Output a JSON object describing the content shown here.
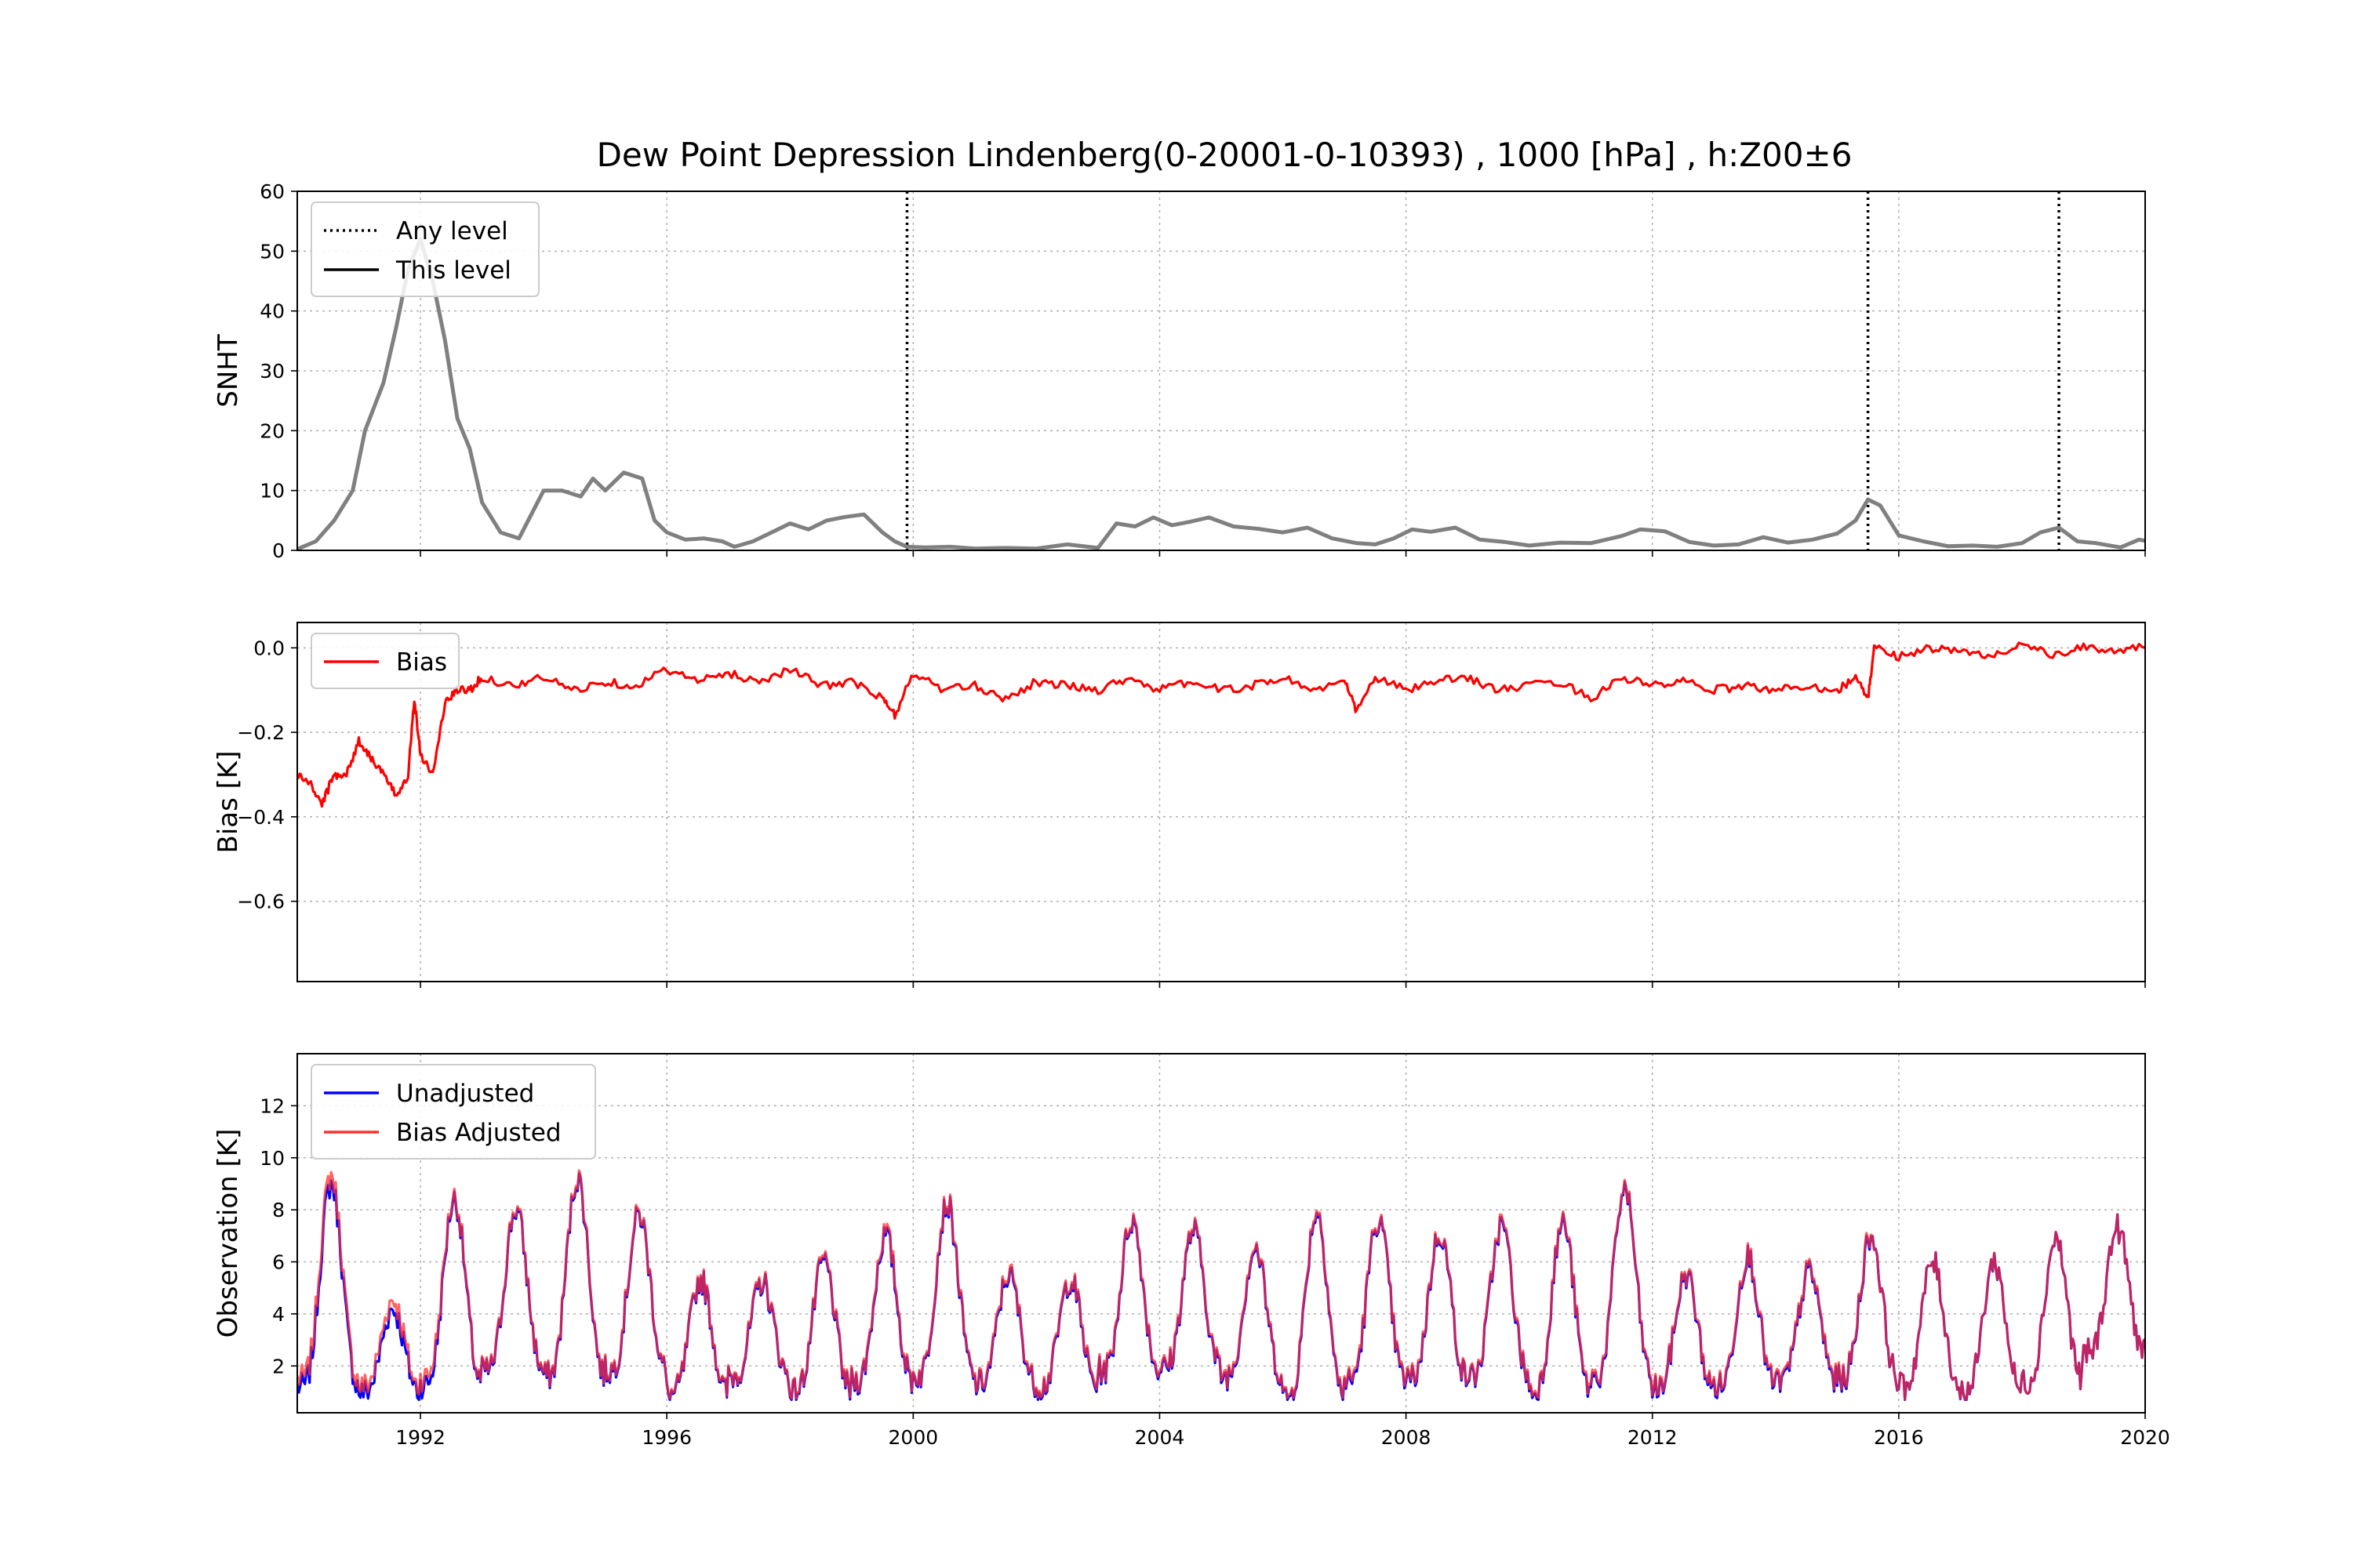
{
  "chart_data": {
    "title": "Dew Point Depression Lindenberg(0-20001-0-10393) , 1000 [hPa] , h:Z00±6",
    "type": "line",
    "xlim": [
      1990,
      2020
    ],
    "xticks": [
      {
        "value": 1992,
        "label": "1992"
      },
      {
        "value": 1996,
        "label": "1996"
      },
      {
        "value": 2000,
        "label": "2000"
      },
      {
        "value": 2004,
        "label": "2004"
      },
      {
        "value": 2008,
        "label": "2008"
      },
      {
        "value": 2012,
        "label": "2012"
      },
      {
        "value": 2016,
        "label": "2016"
      },
      {
        "value": 2020,
        "label": "2020"
      }
    ],
    "grid": true,
    "panels": [
      {
        "id": "snht",
        "ylabel": "SNHT",
        "ylim": [
          0,
          60
        ],
        "yticks": [
          0,
          10,
          20,
          30,
          40,
          50,
          60
        ],
        "ytick_labels": [
          "0",
          "10",
          "20",
          "30",
          "40",
          "50",
          "60"
        ],
        "legend": {
          "placement": "top-left",
          "entries": [
            {
              "label": "Any level",
              "style": "dotted",
              "color": "#000000"
            },
            {
              "label": "This level",
              "style": "solid",
              "color": "#000000"
            }
          ]
        },
        "breakpoints_any_level": [
          1999.9,
          2015.5,
          2018.6
        ],
        "series": [
          {
            "color": "#808080",
            "x": [
              1990.0,
              1990.3,
              1990.6,
              1990.9,
              1991.1,
              1991.4,
              1991.6,
              1991.8,
              1992.0,
              1992.2,
              1992.4,
              1992.6,
              1992.8,
              1993.0,
              1993.3,
              1993.6,
              1993.8,
              1994.0,
              1994.3,
              1994.6,
              1994.8,
              1995.0,
              1995.3,
              1995.6,
              1995.8,
              1996.0,
              1996.3,
              1996.6,
              1996.9,
              1997.1,
              1997.4,
              1997.7,
              1998.0,
              1998.3,
              1998.6,
              1998.9,
              1999.2,
              1999.5,
              1999.7,
              1999.9,
              2000.2,
              2000.6,
              2001.0,
              2001.5,
              2002.0,
              2002.5,
              2003.0,
              2003.3,
              2003.6,
              2003.9,
              2004.2,
              2004.5,
              2004.8,
              2005.2,
              2005.6,
              2006.0,
              2006.4,
              2006.8,
              2007.2,
              2007.5,
              2007.8,
              2008.1,
              2008.4,
              2008.8,
              2009.2,
              2009.6,
              2010.0,
              2010.5,
              2011.0,
              2011.5,
              2011.8,
              2012.2,
              2012.6,
              2013.0,
              2013.4,
              2013.8,
              2014.2,
              2014.6,
              2015.0,
              2015.3,
              2015.5,
              2015.7,
              2016.0,
              2016.4,
              2016.8,
              2017.2,
              2017.6,
              2018.0,
              2018.3,
              2018.6,
              2018.9,
              2019.2,
              2019.6,
              2019.9,
              2020.0
            ],
            "y": [
              0.2,
              1.5,
              5,
              10,
              20,
              28,
              37,
              47,
              52,
              45,
              35,
              22,
              17,
              8,
              3,
              2,
              6,
              10,
              10,
              9,
              12,
              10,
              13,
              12,
              5,
              3,
              1.8,
              2,
              1.5,
              0.6,
              1.5,
              3,
              4.5,
              3.5,
              5,
              5.6,
              6,
              3,
              1.5,
              0.6,
              0.5,
              0.6,
              0.3,
              0.4,
              0.3,
              1.0,
              0.4,
              4.5,
              4,
              5.5,
              4.2,
              4.8,
              5.5,
              4,
              3.6,
              3,
              3.8,
              2,
              1.2,
              1,
              2,
              3.5,
              3.1,
              3.8,
              1.8,
              1.4,
              0.8,
              1.3,
              1.2,
              2.4,
              3.5,
              3.2,
              1.4,
              0.8,
              1,
              2.2,
              1.3,
              1.8,
              2.8,
              5,
              8.5,
              7.5,
              2.5,
              1.5,
              0.7,
              0.8,
              0.6,
              1.2,
              3,
              3.8,
              1.5,
              1.2,
              0.5,
              1.8,
              1.6
            ]
          }
        ]
      },
      {
        "id": "bias",
        "ylabel": "Bias [K]",
        "ylim": [
          -0.79,
          0.06
        ],
        "yticks": [
          0.0,
          -0.2,
          -0.4,
          -0.6
        ],
        "ytick_labels": [
          "0.0",
          "−0.2",
          "−0.4",
          "−0.6"
        ],
        "legend": {
          "placement": "top-left",
          "entries": [
            {
              "label": "Bias",
              "style": "solid",
              "color": "#ff0000"
            }
          ]
        },
        "series": [
          {
            "name": "Bias",
            "color": "#ff0000",
            "x": [
              1990.0,
              1990.2,
              1990.4,
              1990.6,
              1990.8,
              1991.0,
              1991.2,
              1991.4,
              1991.6,
              1991.8,
              1991.9,
              1992.0,
              1992.2,
              1992.4,
              1992.6,
              1992.8,
              1993.0,
              1993.5,
              1994.0,
              1994.5,
              1995.0,
              1995.5,
              1996.0,
              1996.5,
              1997.0,
              1997.5,
              1998.0,
              1998.5,
              1999.0,
              1999.5,
              1999.7,
              2000.0,
              2000.5,
              2001.0,
              2001.5,
              2002.0,
              2002.5,
              2003.0,
              2003.5,
              2004.0,
              2004.5,
              2005.0,
              2005.5,
              2006.0,
              2006.5,
              2007.0,
              2007.2,
              2007.5,
              2008.0,
              2008.5,
              2009.0,
              2009.5,
              2010.0,
              2010.5,
              2011.0,
              2011.5,
              2012.0,
              2012.5,
              2013.0,
              2013.5,
              2014.0,
              2014.5,
              2015.0,
              2015.3,
              2015.5,
              2015.6,
              2016.0,
              2016.5,
              2017.0,
              2017.5,
              2018.0,
              2018.5,
              2019.0,
              2019.5,
              2020.0
            ],
            "y": [
              -0.3,
              -0.32,
              -0.37,
              -0.3,
              -0.3,
              -0.22,
              -0.26,
              -0.3,
              -0.35,
              -0.3,
              -0.12,
              -0.25,
              -0.3,
              -0.13,
              -0.1,
              -0.1,
              -0.07,
              -0.09,
              -0.07,
              -0.1,
              -0.08,
              -0.09,
              -0.05,
              -0.08,
              -0.06,
              -0.08,
              -0.05,
              -0.09,
              -0.08,
              -0.12,
              -0.16,
              -0.06,
              -0.1,
              -0.09,
              -0.12,
              -0.08,
              -0.09,
              -0.1,
              -0.07,
              -0.1,
              -0.08,
              -0.1,
              -0.09,
              -0.07,
              -0.1,
              -0.08,
              -0.15,
              -0.07,
              -0.1,
              -0.08,
              -0.07,
              -0.1,
              -0.09,
              -0.08,
              -0.12,
              -0.07,
              -0.09,
              -0.08,
              -0.1,
              -0.09,
              -0.1,
              -0.09,
              -0.1,
              -0.07,
              -0.12,
              0.0,
              -0.02,
              0.0,
              -0.01,
              -0.02,
              0.01,
              -0.02,
              0.0,
              -0.005,
              0.0
            ]
          }
        ]
      },
      {
        "id": "observation",
        "ylabel": "Observation [K]",
        "ylim": [
          0.2,
          14
        ],
        "yticks": [
          2,
          4,
          6,
          8,
          10,
          12
        ],
        "ytick_labels": [
          "2",
          "4",
          "6",
          "8",
          "10",
          "12"
        ],
        "legend": {
          "placement": "top-left",
          "entries": [
            {
              "label": "Unadjusted",
              "style": "solid",
              "color": "#0000ff"
            },
            {
              "label": "Bias Adjusted",
              "style": "solid",
              "color": "#ff3030"
            }
          ]
        },
        "seasonal_peaks": [
          {
            "year": 1990,
            "peak": 9.0,
            "trough": 1.2
          },
          {
            "year": 1991,
            "peak": 4.2,
            "trough": 1.0
          },
          {
            "year": 1992,
            "peak": 8.4,
            "trough": 1.3
          },
          {
            "year": 1993,
            "peak": 8.0,
            "trough": 1.8
          },
          {
            "year": 1994,
            "peak": 9.2,
            "trough": 1.6
          },
          {
            "year": 1995,
            "peak": 7.8,
            "trough": 1.8
          },
          {
            "year": 1996,
            "peak": 5.3,
            "trough": 0.9
          },
          {
            "year": 1997,
            "peak": 5.2,
            "trough": 1.6
          },
          {
            "year": 1998,
            "peak": 6.0,
            "trough": 1.0
          },
          {
            "year": 1999,
            "peak": 7.0,
            "trough": 1.4
          },
          {
            "year": 2000,
            "peak": 8.2,
            "trough": 1.6
          },
          {
            "year": 2001,
            "peak": 5.5,
            "trough": 1.3
          },
          {
            "year": 2002,
            "peak": 5.3,
            "trough": 1.2
          },
          {
            "year": 2003,
            "peak": 7.6,
            "trough": 1.8
          },
          {
            "year": 2004,
            "peak": 7.2,
            "trough": 1.9
          },
          {
            "year": 2005,
            "peak": 6.5,
            "trough": 1.6
          },
          {
            "year": 2006,
            "peak": 7.9,
            "trough": 0.8
          },
          {
            "year": 2007,
            "peak": 7.6,
            "trough": 1.4
          },
          {
            "year": 2008,
            "peak": 7.1,
            "trough": 1.5
          },
          {
            "year": 2009,
            "peak": 7.4,
            "trough": 1.6
          },
          {
            "year": 2010,
            "peak": 7.5,
            "trough": 1.0
          },
          {
            "year": 2011,
            "peak": 8.8,
            "trough": 1.5
          },
          {
            "year": 2012,
            "peak": 5.5,
            "trough": 1.1
          },
          {
            "year": 2013,
            "peak": 6.2,
            "trough": 1.2
          },
          {
            "year": 2014,
            "peak": 5.6,
            "trough": 1.4
          },
          {
            "year": 2015,
            "peak": 7.0,
            "trough": 1.5
          },
          {
            "year": 2016,
            "peak": 6.0,
            "trough": 1.2
          },
          {
            "year": 2017,
            "peak": 6.0,
            "trough": 1.0
          },
          {
            "year": 2018,
            "peak": 6.9,
            "trough": 1.4
          },
          {
            "year": 2019,
            "peak": 7.3,
            "trough": 2.5
          }
        ],
        "series": [
          {
            "name": "Unadjusted",
            "color": "#0000ff"
          },
          {
            "name": "Bias Adjusted",
            "color": "#ff3030"
          }
        ]
      }
    ]
  }
}
